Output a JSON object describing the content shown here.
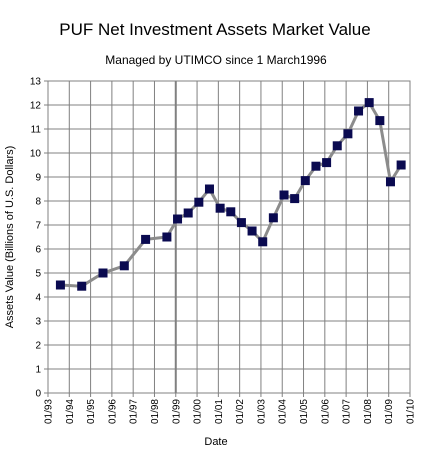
{
  "chart_data": {
    "type": "line",
    "title": "PUF Net Investment Assets Market Value",
    "subtitle": "Managed by UTIMCO since 1 March1996",
    "xlabel": "Date",
    "ylabel": "Assets Value (Billions of U.S. Dollars)",
    "ylim": [
      0,
      13
    ],
    "xlim": [
      "1993-01",
      "2010-01"
    ],
    "yticks": [
      0,
      1,
      2,
      3,
      4,
      5,
      6,
      7,
      8,
      9,
      10,
      11,
      12,
      13
    ],
    "xtick_labels": [
      "01/93",
      "01/94",
      "01/95",
      "01/96",
      "01/97",
      "01/98",
      "01/99",
      "01/00",
      "01/01",
      "01/02",
      "01/03",
      "01/04",
      "01/05",
      "01/06",
      "01/07",
      "01/08",
      "01/09",
      "01/10"
    ],
    "grid": true,
    "marker": "square",
    "line_color": "#8c8c8c",
    "marker_color": "#0a0a50",
    "highlight_line_x": "1999-01",
    "x": [
      "1993-08",
      "1994-08",
      "1995-08",
      "1996-08",
      "1997-08",
      "1998-08",
      "1999-02",
      "1999-08",
      "2000-02",
      "2000-08",
      "2001-02",
      "2001-08",
      "2002-02",
      "2002-08",
      "2003-02",
      "2003-08",
      "2004-02",
      "2004-08",
      "2005-02",
      "2005-08",
      "2006-02",
      "2006-08",
      "2007-02",
      "2007-08",
      "2008-02",
      "2008-08",
      "2009-02",
      "2009-08"
    ],
    "values": [
      4.5,
      4.45,
      5.0,
      5.3,
      6.4,
      6.5,
      7.25,
      7.5,
      7.95,
      8.5,
      7.7,
      7.55,
      7.1,
      6.75,
      6.3,
      7.3,
      8.25,
      8.1,
      8.85,
      9.45,
      9.6,
      10.3,
      10.8,
      11.75,
      12.1,
      11.35,
      8.8,
      9.5
    ]
  }
}
